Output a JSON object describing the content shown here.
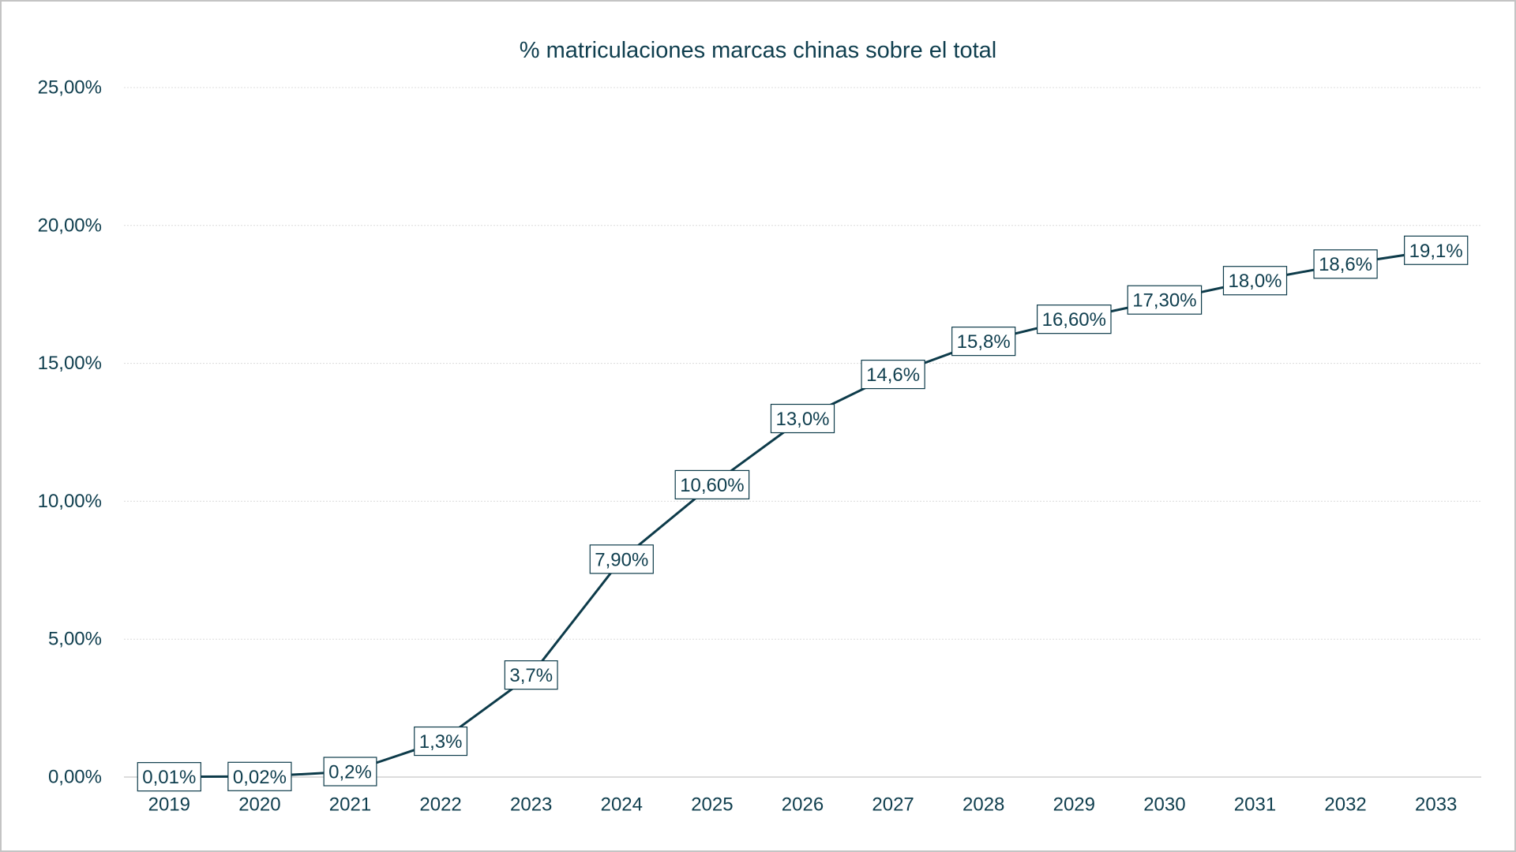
{
  "chart_data": {
    "type": "line",
    "title": "% matriculaciones marcas chinas sobre el total",
    "categories": [
      "2019",
      "2020",
      "2021",
      "2022",
      "2023",
      "2024",
      "2025",
      "2026",
      "2027",
      "2028",
      "2029",
      "2030",
      "2031",
      "2032",
      "2033"
    ],
    "series": [
      {
        "values": [
          0.01,
          0.02,
          0.2,
          1.3,
          3.7,
          7.9,
          10.6,
          13.0,
          14.6,
          15.8,
          16.6,
          17.3,
          18.0,
          18.6,
          19.1
        ],
        "data_labels": [
          "0,01%",
          "0,02%",
          "0,2%",
          "1,3%",
          "3,7%",
          "7,90%",
          "10,60%",
          "13,0%",
          "14,6%",
          "15,8%",
          "16,60%",
          "17,30%",
          "18,0%",
          "18,6%",
          "19,1%"
        ]
      }
    ],
    "ylim": [
      0,
      25
    ],
    "yticks": [
      0,
      5,
      10,
      15,
      20,
      25
    ],
    "ytick_labels": [
      "0,00%",
      "5,00%",
      "10,00%",
      "15,00%",
      "20,00%",
      "25,00%"
    ],
    "grid": true,
    "legend": "none"
  },
  "colors": {
    "line": "#0d3b4a",
    "text": "#0f3e4e",
    "grid": "#dcdcdc",
    "baseline": "#d0d0d0",
    "label_box_border": "#0d3b4a",
    "label_box_fill": "#ffffff",
    "frame": "#c4c4c4"
  }
}
